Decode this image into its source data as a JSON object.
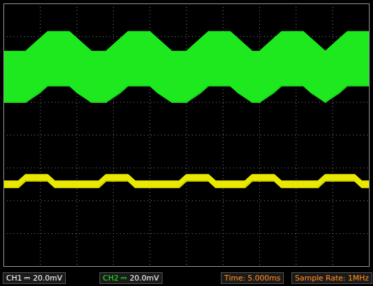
{
  "chart_data": {
    "type": "area",
    "x": [
      0,
      1,
      2,
      3,
      4,
      5,
      6,
      7,
      8,
      9,
      10,
      11,
      12,
      13,
      14,
      15,
      16,
      17,
      18,
      19,
      20,
      21,
      22,
      23,
      24,
      25,
      26,
      27,
      28,
      29,
      30,
      31,
      32,
      33,
      34,
      35,
      36,
      37,
      38,
      39,
      40,
      41,
      42,
      43,
      44,
      45,
      46,
      47,
      48,
      49,
      50
    ],
    "xlim": [
      0,
      50
    ],
    "xticks": [
      0,
      5,
      10,
      15,
      20,
      25,
      30,
      35,
      40,
      45,
      50
    ],
    "ylim": [
      -80,
      80
    ],
    "yticks": [
      -80,
      -60,
      -40,
      -20,
      0,
      20,
      40,
      60,
      80
    ],
    "grid": true,
    "tick_labels": false,
    "series": [
      {
        "name": "CH1",
        "color": "#e8e800",
        "coupling_symbol": "⎓",
        "scale_label": "20.0mV",
        "max": [
          -28,
          -28,
          -28,
          -24,
          -24,
          -24,
          -24,
          -28,
          -28,
          -28,
          -28,
          -28,
          -28,
          -28,
          -24,
          -24,
          -24,
          -24,
          -28,
          -28,
          -28,
          -28,
          -28,
          -28,
          -28,
          -24,
          -24,
          -24,
          -24,
          -28,
          -28,
          -28,
          -28,
          -28,
          -24,
          -24,
          -24,
          -24,
          -28,
          -28,
          -28,
          -28,
          -28,
          -28,
          -24,
          -24,
          -24,
          -24,
          -24,
          -28,
          -28
        ],
        "min": [
          -32,
          -32,
          -32,
          -28,
          -28,
          -28,
          -28,
          -32,
          -32,
          -32,
          -32,
          -32,
          -32,
          -32,
          -28,
          -28,
          -28,
          -28,
          -32,
          -32,
          -32,
          -32,
          -32,
          -32,
          -32,
          -28,
          -28,
          -28,
          -28,
          -32,
          -32,
          -32,
          -32,
          -32,
          -28,
          -28,
          -28,
          -28,
          -32,
          -32,
          -32,
          -32,
          -32,
          -32,
          -28,
          -28,
          -28,
          -28,
          -28,
          -32,
          -32
        ]
      },
      {
        "name": "CH2",
        "color": "#1ee81e",
        "coupling_symbol": "⎓",
        "scale_label": "20.0mV",
        "max": [
          51,
          51,
          51,
          51,
          55,
          59,
          63,
          63,
          63,
          63,
          59,
          55,
          51,
          51,
          51,
          55,
          59,
          63,
          63,
          63,
          63,
          59,
          55,
          51,
          51,
          51,
          55,
          59,
          63,
          63,
          63,
          63,
          59,
          55,
          51,
          51,
          55,
          59,
          63,
          63,
          63,
          63,
          59,
          55,
          51,
          55,
          59,
          63,
          63,
          63,
          63
        ],
        "min": [
          20,
          20,
          20,
          20,
          23,
          26,
          30,
          30,
          30,
          30,
          26,
          23,
          20,
          20,
          20,
          23,
          26,
          30,
          30,
          30,
          30,
          26,
          23,
          20,
          20,
          20,
          23,
          26,
          30,
          30,
          30,
          30,
          26,
          23,
          20,
          20,
          23,
          26,
          30,
          30,
          30,
          30,
          26,
          23,
          20,
          23,
          26,
          30,
          30,
          30,
          30
        ]
      }
    ],
    "status_bar": [
      {
        "text": "Time: 5.000ms",
        "color": "#ff8c1a"
      },
      {
        "text": "Sample Rate: 1MHz",
        "color": "#ff8c1a"
      }
    ]
  }
}
